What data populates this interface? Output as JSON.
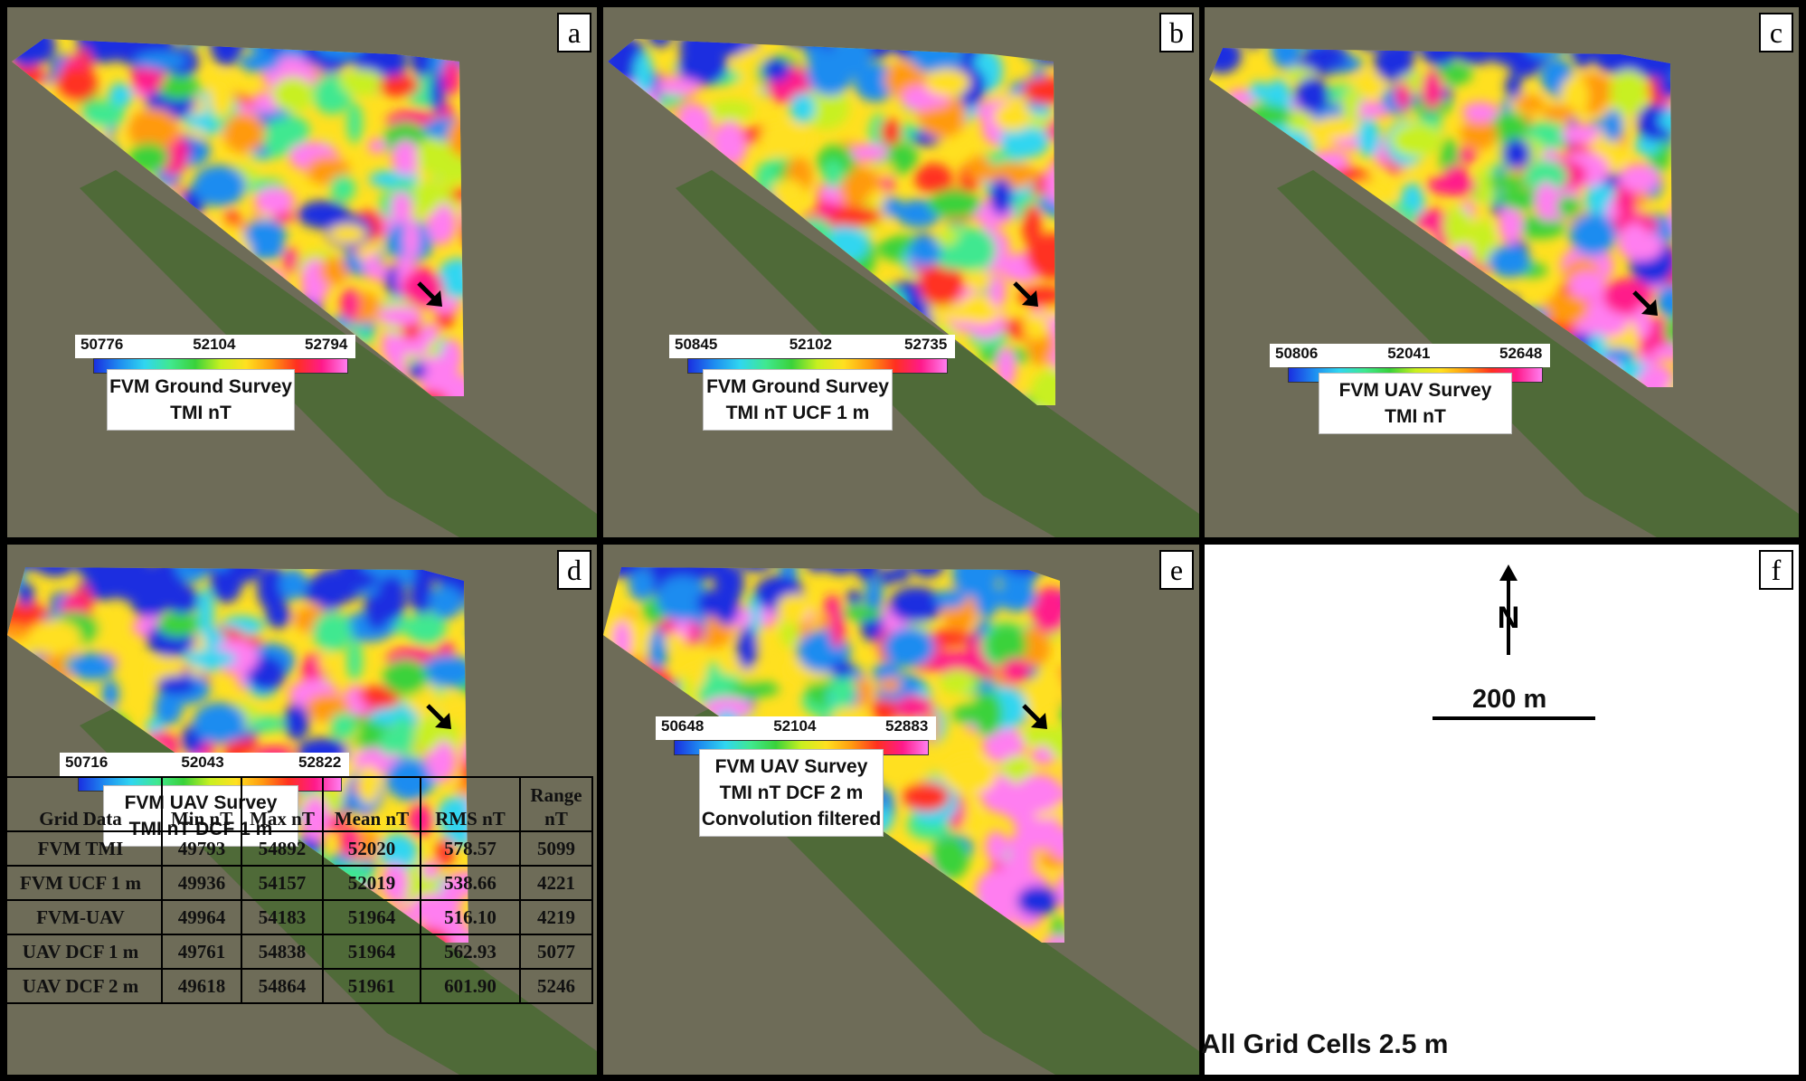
{
  "panels": [
    {
      "letter": "a",
      "scale": {
        "min": "50776",
        "mid": "52104",
        "max": "52794"
      },
      "title": [
        "FVM Ground Survey",
        "TMI nT"
      ]
    },
    {
      "letter": "b",
      "scale": {
        "min": "50845",
        "mid": "52102",
        "max": "52735"
      },
      "title": [
        "FVM Ground Survey",
        "TMI nT UCF 1 m"
      ]
    },
    {
      "letter": "c",
      "scale": {
        "min": "50806",
        "mid": "52041",
        "max": "52648"
      },
      "title": [
        "FVM UAV Survey",
        "TMI nT"
      ]
    },
    {
      "letter": "d",
      "scale": {
        "min": "50716",
        "mid": "52043",
        "max": "52822"
      },
      "title": [
        "FVM UAV Survey",
        "TMI nT DCF 1 m"
      ]
    },
    {
      "letter": "e",
      "scale": {
        "min": "50648",
        "mid": "52104",
        "max": "52883"
      },
      "title": [
        "FVM UAV Survey",
        "TMI nT DCF 2 m",
        "Convolution filtered"
      ]
    }
  ],
  "legend_panel": {
    "letter": "f",
    "north_label": "N",
    "scale_label": "200 m",
    "footer": "All Grid Cells 2.5 m",
    "table": {
      "headers": [
        "Grid  Data",
        "Min nT",
        "Max nT",
        "Mean nT",
        "RMS nT",
        "Range nT"
      ],
      "rows": [
        [
          "FVM TMI",
          "49793",
          "54892",
          "52020",
          "578.57",
          "5099"
        ],
        [
          "FVM UCF  1 m",
          "49936",
          "54157",
          "52019",
          "538.66",
          "4221"
        ],
        [
          "FVM-UAV",
          "49964",
          "54183",
          "51964",
          "516.10",
          "4219"
        ],
        [
          "UAV  DCF  1 m",
          "49761",
          "54838",
          "51964",
          "562.93",
          "5077"
        ],
        [
          "UAV  DCF  2 m",
          "49618",
          "54864",
          "51961",
          "601.90",
          "5246"
        ]
      ]
    }
  },
  "colors": {
    "ramp": [
      "#1a2fe0",
      "#1e8cf0",
      "#30d6f0",
      "#40e890",
      "#3ad23a",
      "#c8f020",
      "#ffe020",
      "#ff9a10",
      "#ff3020",
      "#ff1a8a",
      "#ff7ef0"
    ],
    "background": "#6b6a55"
  }
}
